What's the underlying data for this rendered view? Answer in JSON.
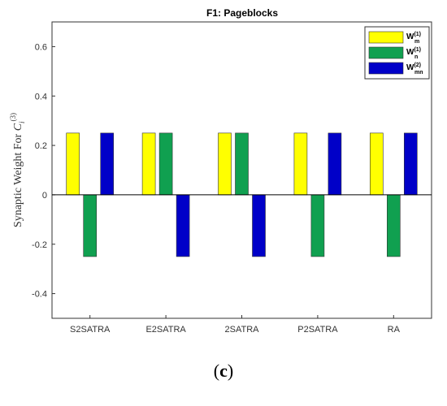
{
  "chart_data": {
    "type": "bar",
    "title": "F1: Pageblocks",
    "ylabel": "Synaptic Weight For C_i^(3)",
    "xlabel": "",
    "categories": [
      "S2SATRA",
      "E2SATRA",
      "2SATRA",
      "P2SATRA",
      "RA"
    ],
    "ylim": [
      -0.5,
      0.7
    ],
    "yticks": [
      -0.4,
      -0.2,
      0,
      0.2,
      0.4,
      0.6
    ],
    "ytick_labels": [
      "-0.4",
      "-0.2",
      "0",
      "0.2",
      "0.4",
      "0.6"
    ],
    "grid": false,
    "legend_position": "top-right",
    "series": [
      {
        "name": "W_m^(1)",
        "color": "#ffff00",
        "values": [
          0.25,
          0.25,
          0.25,
          0.25,
          0.25
        ]
      },
      {
        "name": "W_n^(1)",
        "color": "#10a050",
        "values": [
          -0.25,
          0.25,
          0.25,
          -0.25,
          -0.25
        ]
      },
      {
        "name": "W_mn^(2)",
        "color": "#0000c8",
        "values": [
          0.25,
          -0.25,
          -0.25,
          0.25,
          0.25
        ]
      }
    ]
  },
  "caption": {
    "open": "(",
    "letter": "c",
    "close": ")"
  }
}
